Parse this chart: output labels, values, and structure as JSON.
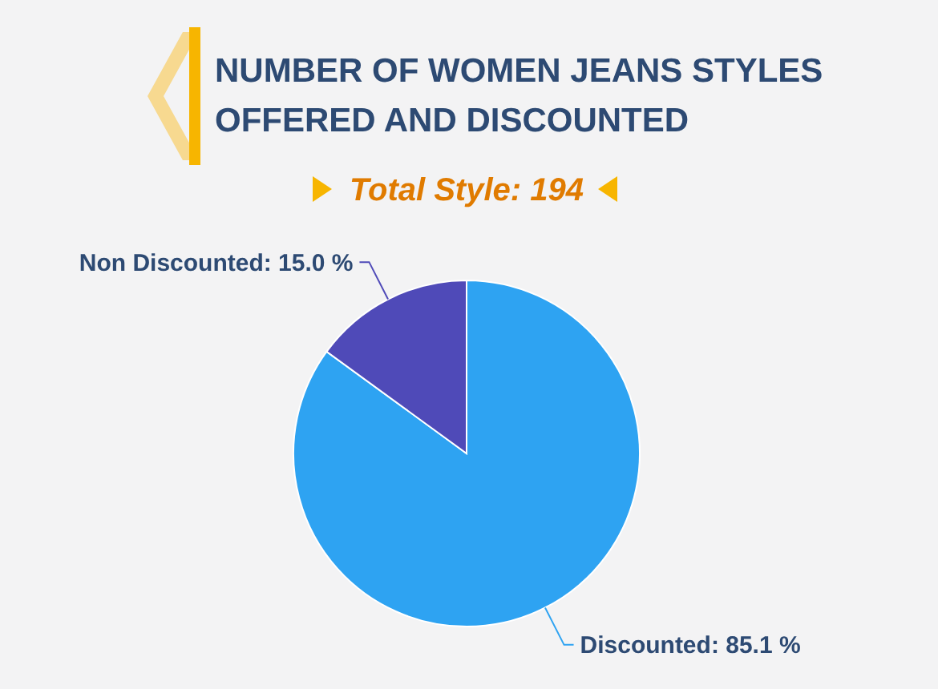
{
  "chart_data": {
    "type": "pie",
    "title": "NUMBER OF WOMEN JEANS STYLES OFFERED AND DISCOUNTED",
    "subtitle": "Total Style: 194",
    "categories": [
      "Discounted",
      "Non Discounted"
    ],
    "values": [
      85.1,
      15.0
    ],
    "colors": [
      "#2ea3f2",
      "#4f4ab8"
    ],
    "value_labels": [
      "85.1 %",
      "15.0 %"
    ],
    "legend": false
  }
}
